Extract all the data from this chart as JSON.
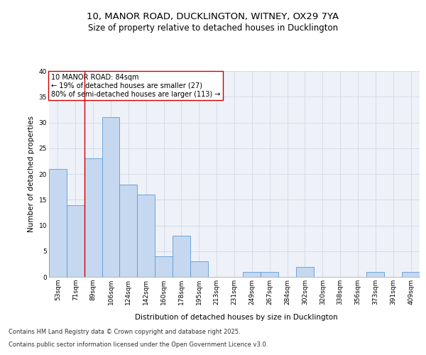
{
  "title_line1": "10, MANOR ROAD, DUCKLINGTON, WITNEY, OX29 7YA",
  "title_line2": "Size of property relative to detached houses in Ducklington",
  "xlabel": "Distribution of detached houses by size in Ducklington",
  "ylabel": "Number of detached properties",
  "categories": [
    "53sqm",
    "71sqm",
    "89sqm",
    "106sqm",
    "124sqm",
    "142sqm",
    "160sqm",
    "178sqm",
    "195sqm",
    "213sqm",
    "231sqm",
    "249sqm",
    "267sqm",
    "284sqm",
    "302sqm",
    "320sqm",
    "338sqm",
    "356sqm",
    "373sqm",
    "391sqm",
    "409sqm"
  ],
  "values": [
    21,
    14,
    23,
    31,
    18,
    16,
    4,
    8,
    3,
    0,
    0,
    1,
    1,
    0,
    2,
    0,
    0,
    0,
    1,
    0,
    1
  ],
  "bar_color": "#c5d8f0",
  "bar_edge_color": "#5b9bd5",
  "grid_color": "#d0d8e4",
  "background_color": "#eef2f8",
  "vline_x": 1.5,
  "vline_color": "#cc0000",
  "annotation_text": "10 MANOR ROAD: 84sqm\n← 19% of detached houses are smaller (27)\n80% of semi-detached houses are larger (113) →",
  "annotation_box_color": "#ffffff",
  "annotation_box_edge": "#cc0000",
  "ylim": [
    0,
    40
  ],
  "yticks": [
    0,
    5,
    10,
    15,
    20,
    25,
    30,
    35,
    40
  ],
  "footer_line1": "Contains HM Land Registry data © Crown copyright and database right 2025.",
  "footer_line2": "Contains public sector information licensed under the Open Government Licence v3.0.",
  "title_fontsize": 9.5,
  "subtitle_fontsize": 8.5,
  "axis_label_fontsize": 7.5,
  "tick_fontsize": 6.5,
  "annotation_fontsize": 7,
  "footer_fontsize": 6
}
